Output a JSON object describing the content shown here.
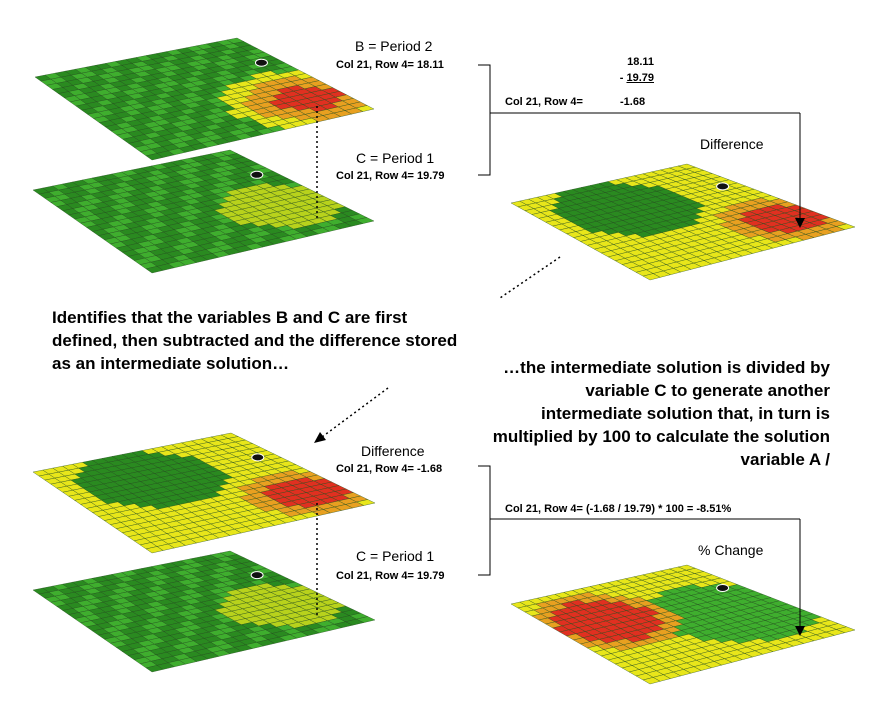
{
  "colors": {
    "green": "#3fae2e",
    "dark_green": "#2a8a20",
    "yellow": "#e8e61a",
    "orange": "#e8a020",
    "red": "#e03020",
    "grid_line": "#1f4a1a"
  },
  "top_left": {
    "period2": {
      "title": "B = Period 2",
      "coord": "Col 21, Row 4= 18.11"
    },
    "period1": {
      "title": "C = Period 1",
      "coord": "Col 21, Row 4= 19.79"
    }
  },
  "top_right": {
    "calc_line1": "18.11",
    "calc_line2_prefix": "- ",
    "calc_line2_value": "19.79",
    "result_label": "Col 21, Row 4=",
    "result_value": "-1.68",
    "map_title": "Difference"
  },
  "explanation_1": "Identifies that the variables B and C are first defined, then subtracted and the difference stored as an intermediate solution…",
  "explanation_2": "…the intermediate solution is divided by variable C to generate another intermediate solution that, in turn is multiplied by 100 to calculate the solution variable A /",
  "bottom_left": {
    "difference": {
      "title": "Difference",
      "coord": "Col 21, Row 4= -1.68"
    },
    "period1": {
      "title": "C = Period 1",
      "coord": "Col 21, Row 4= 19.79"
    }
  },
  "bottom_right": {
    "formula": "Col 21, Row 4=  (-1.68 / 19.79) * 100 = -8.51%",
    "map_title": "% Change"
  },
  "surfaces": [
    {
      "id": "b-period2",
      "scheme": "green-hotspot"
    },
    {
      "id": "c-period1-top",
      "scheme": "green-smooth"
    },
    {
      "id": "difference-top",
      "scheme": "difference"
    },
    {
      "id": "difference-bottom",
      "scheme": "difference"
    },
    {
      "id": "c-period1-bottom",
      "scheme": "green-smooth"
    },
    {
      "id": "percent-change",
      "scheme": "percent"
    }
  ]
}
